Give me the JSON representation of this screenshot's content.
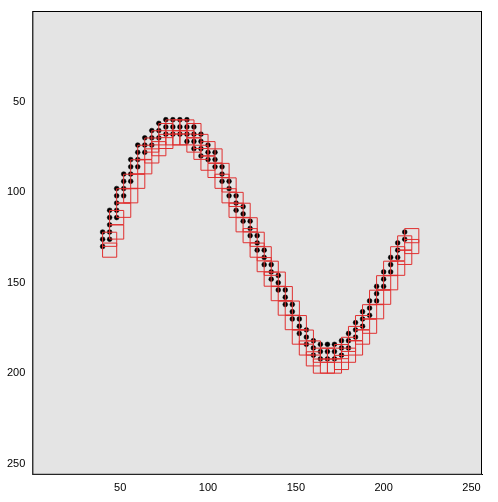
{
  "chart_data": {
    "type": "scatter",
    "xlim": [
      0,
      256
    ],
    "xticks": [
      50,
      100,
      150,
      200,
      250
    ],
    "ylim": [
      256,
      0
    ],
    "yticks": [
      50,
      100,
      150,
      200,
      250
    ],
    "grid": false,
    "series": [
      {
        "color": "#e03030",
        "marker": "square",
        "x": [
          44,
          44,
          48,
          48,
          52,
          52,
          56,
          56,
          60,
          60,
          64,
          64,
          68,
          68,
          72,
          72,
          76,
          76,
          80,
          80,
          84,
          84,
          88,
          88,
          92,
          92,
          96,
          96,
          100,
          100,
          104,
          104,
          108,
          108,
          112,
          112,
          116,
          116,
          120,
          120,
          124,
          124,
          128,
          128,
          132,
          132,
          136,
          136,
          140,
          140,
          144,
          144,
          148,
          148,
          152,
          152,
          156,
          156,
          160,
          160,
          164,
          164,
          168,
          168,
          172,
          172,
          176,
          176,
          180,
          180,
          184,
          184,
          188,
          188,
          192,
          192,
          196,
          196,
          200,
          200,
          204,
          204,
          208,
          208,
          212,
          212,
          216,
          216
        ],
        "values": [
          126,
          132,
          114,
          122,
          102,
          110,
          94,
          102,
          86,
          94,
          78,
          86,
          74,
          80,
          70,
          76,
          66,
          72,
          64,
          70,
          64,
          70,
          64,
          70,
          66,
          74,
          72,
          78,
          76,
          84,
          80,
          88,
          88,
          94,
          96,
          102,
          104,
          110,
          110,
          118,
          118,
          124,
          126,
          132,
          134,
          140,
          142,
          148,
          148,
          156,
          156,
          164,
          164,
          172,
          172,
          180,
          180,
          186,
          186,
          192,
          190,
          196,
          190,
          196,
          190,
          196,
          188,
          194,
          184,
          190,
          178,
          186,
          172,
          180,
          166,
          174,
          158,
          166,
          150,
          158,
          142,
          150,
          134,
          142,
          128,
          136,
          124,
          130
        ]
      },
      {
        "color": "#000000",
        "marker": "circle",
        "x": [
          40,
          40,
          40,
          44,
          44,
          44,
          44,
          44,
          48,
          48,
          48,
          48,
          48,
          52,
          52,
          52,
          52,
          56,
          56,
          56,
          56,
          60,
          60,
          60,
          60,
          64,
          64,
          64,
          68,
          68,
          68,
          72,
          72,
          72,
          76,
          76,
          76,
          80,
          80,
          80,
          84,
          84,
          84,
          88,
          88,
          88,
          88,
          92,
          92,
          92,
          92,
          96,
          96,
          96,
          96,
          100,
          100,
          100,
          104,
          104,
          104,
          108,
          108,
          108,
          112,
          112,
          112,
          116,
          116,
          116,
          120,
          120,
          120,
          124,
          124,
          124,
          128,
          128,
          128,
          132,
          132,
          132,
          136,
          136,
          136,
          140,
          140,
          140,
          144,
          144,
          144,
          148,
          148,
          148,
          152,
          152,
          152,
          156,
          156,
          156,
          160,
          160,
          160,
          164,
          164,
          164,
          168,
          168,
          168,
          172,
          172,
          172,
          176,
          176,
          176,
          180,
          180,
          180,
          184,
          184,
          184,
          188,
          188,
          188,
          192,
          192,
          192,
          196,
          196,
          196,
          200,
          200,
          200,
          204,
          204,
          204,
          208,
          208,
          208,
          212,
          212
        ],
        "values": [
          122,
          126,
          130,
          110,
          114,
          118,
          122,
          126,
          98,
          102,
          106,
          110,
          114,
          90,
          94,
          98,
          102,
          82,
          86,
          90,
          94,
          74,
          78,
          82,
          86,
          70,
          74,
          78,
          66,
          70,
          74,
          62,
          66,
          70,
          60,
          64,
          68,
          60,
          64,
          68,
          60,
          64,
          68,
          60,
          64,
          68,
          72,
          64,
          68,
          72,
          76,
          68,
          72,
          76,
          80,
          74,
          78,
          82,
          78,
          82,
          86,
          86,
          90,
          94,
          94,
          98,
          102,
          102,
          106,
          110,
          108,
          112,
          116,
          116,
          120,
          124,
          124,
          128,
          132,
          132,
          136,
          140,
          140,
          144,
          148,
          146,
          150,
          154,
          154,
          158,
          162,
          162,
          166,
          170,
          170,
          174,
          178,
          176,
          180,
          184,
          182,
          186,
          190,
          184,
          188,
          192,
          184,
          188,
          192,
          184,
          188,
          192,
          182,
          186,
          190,
          178,
          182,
          186,
          172,
          176,
          180,
          166,
          170,
          174,
          160,
          164,
          168,
          152,
          156,
          160,
          144,
          148,
          152,
          136,
          140,
          144,
          128,
          132,
          136,
          122,
          126
        ]
      }
    ]
  }
}
